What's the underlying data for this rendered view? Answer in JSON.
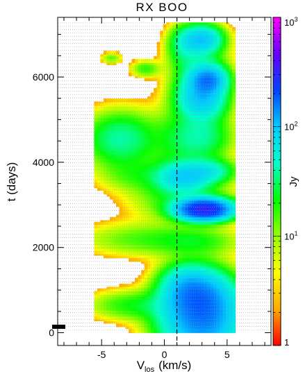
{
  "chart_data": {
    "type": "heatmap",
    "title": "RX BOO",
    "xlabel": "V_los (km/s)",
    "xlabel_main": "V",
    "xlabel_sub": "los",
    "xlabel_unit": "(km/s)",
    "ylabel": "t (days)",
    "colorbar_label": "Jy",
    "xlim": [
      -8.5,
      8.5
    ],
    "ylim": [
      -300,
      7400
    ],
    "x_ticks": [
      -5,
      0,
      5
    ],
    "x_tick_labels": [
      "-5",
      "0",
      "5"
    ],
    "y_ticks": [
      0,
      2000,
      4000,
      6000
    ],
    "y_tick_labels": [
      "0",
      "2000",
      "4000",
      "6000"
    ],
    "colorbar_range": [
      1,
      1000
    ],
    "colorbar_scale": "log",
    "colorbar_ticks": [
      1,
      10,
      100,
      1000
    ],
    "colorbar_tick_labels": [
      {
        "base": "1",
        "exp": ""
      },
      {
        "base": "10",
        "exp": "1"
      },
      {
        "base": "10",
        "exp": "2"
      },
      {
        "base": "10",
        "exp": "3"
      }
    ],
    "stellar_velocity": 1.0,
    "grid": "horizontal dotted lines at observation epochs",
    "colormap": [
      "#ff0000",
      "#ffaa00",
      "#ffff00",
      "#99ff00",
      "#00ff00",
      "#00ffcc",
      "#00ccff",
      "#0044ff",
      "#6600ff",
      "#ff00ff"
    ],
    "emission_blobs": [
      {
        "x": 3.0,
        "t": 300,
        "sx": 2.0,
        "st": 550,
        "peak": 140
      },
      {
        "x": 2.8,
        "t": 900,
        "sx": 1.6,
        "st": 380,
        "peak": 90
      },
      {
        "x": 1.6,
        "t": 1150,
        "sx": 1.2,
        "st": 300,
        "peak": 40
      },
      {
        "x": -2.5,
        "t": 650,
        "sx": 2.2,
        "st": 220,
        "peak": 20
      },
      {
        "x": 2.5,
        "t": 2150,
        "sx": 2.2,
        "st": 220,
        "peak": 18
      },
      {
        "x": -2.0,
        "t": 2200,
        "sx": 3.0,
        "st": 250,
        "peak": 14
      },
      {
        "x": 3.2,
        "t": 2900,
        "sx": 1.3,
        "st": 150,
        "peak": 300
      },
      {
        "x": 1.5,
        "t": 3150,
        "sx": 2.5,
        "st": 350,
        "peak": 20
      },
      {
        "x": 1.5,
        "t": 3650,
        "sx": 1.3,
        "st": 220,
        "peak": 70
      },
      {
        "x": -2.0,
        "t": 3700,
        "sx": 2.0,
        "st": 250,
        "peak": 14
      },
      {
        "x": 3.5,
        "t": 3800,
        "sx": 1.3,
        "st": 180,
        "peak": 50
      },
      {
        "x": -3.5,
        "t": 4550,
        "sx": 1.8,
        "st": 400,
        "peak": 40
      },
      {
        "x": 3.0,
        "t": 4600,
        "sx": 1.5,
        "st": 350,
        "peak": 35
      },
      {
        "x": 1.0,
        "t": 4450,
        "sx": 1.5,
        "st": 600,
        "peak": 14
      },
      {
        "x": 3.0,
        "t": 5500,
        "sx": 1.2,
        "st": 300,
        "peak": 90
      },
      {
        "x": 3.5,
        "t": 5950,
        "sx": 0.9,
        "st": 200,
        "peak": 120
      },
      {
        "x": 2.8,
        "t": 6200,
        "sx": 1.4,
        "st": 500,
        "peak": 30
      },
      {
        "x": 3.0,
        "t": 6900,
        "sx": 1.0,
        "st": 200,
        "peak": 90
      },
      {
        "x": 1.5,
        "t": 6750,
        "sx": 0.8,
        "st": 300,
        "peak": 25
      },
      {
        "x": -4.2,
        "t": 6450,
        "sx": 0.5,
        "st": 80,
        "peak": 14
      },
      {
        "x": -1.5,
        "t": 6200,
        "sx": 0.7,
        "st": 120,
        "peak": 18
      }
    ]
  }
}
